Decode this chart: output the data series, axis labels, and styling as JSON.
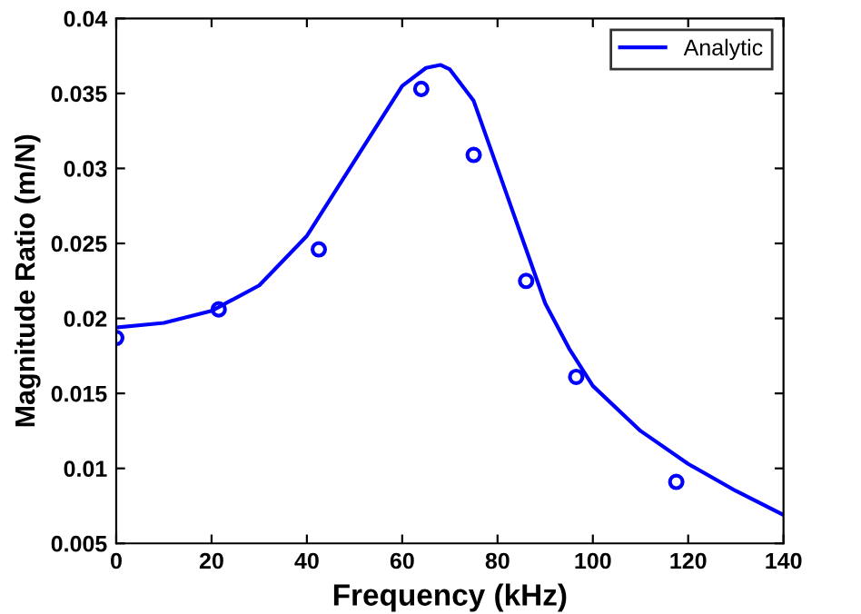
{
  "chart_data": {
    "type": "line",
    "xlabel": "Frequency (kHz)",
    "ylabel": "Magnitude Ratio (m/N)",
    "xlim": [
      0,
      140
    ],
    "xticks": [
      0,
      20,
      40,
      60,
      80,
      100,
      120,
      140
    ],
    "ylim": [
      0.005,
      0.04
    ],
    "yticks": [
      0.005,
      0.01,
      0.015,
      0.02,
      0.025,
      0.03,
      0.035,
      0.04
    ],
    "grid": false,
    "legend": "top right",
    "series": [
      {
        "name": "Analytic",
        "color": "#0000ff",
        "marker": "none",
        "line_style": "solid",
        "x": [
          0,
          10,
          20,
          30,
          40,
          50,
          55,
          60,
          65,
          68,
          70,
          75,
          80,
          85,
          90,
          95,
          100,
          110,
          120,
          130,
          140
        ],
        "values": [
          0.0194,
          0.0197,
          0.0205,
          0.0222,
          0.0255,
          0.0305,
          0.033,
          0.0355,
          0.0367,
          0.0369,
          0.0366,
          0.0345,
          0.03,
          0.0255,
          0.021,
          0.018,
          0.0155,
          0.0125,
          0.0103,
          0.0085,
          0.0069
        ]
      },
      {
        "type": "scatter",
        "color": "#0000ff",
        "marker": "circle",
        "x": [
          0,
          21.5,
          42.5,
          64,
          75,
          86,
          96.5,
          117.5
        ],
        "values": [
          0.0187,
          0.0206,
          0.0246,
          0.0353,
          0.0309,
          0.0225,
          0.0161,
          0.0091
        ]
      }
    ]
  }
}
